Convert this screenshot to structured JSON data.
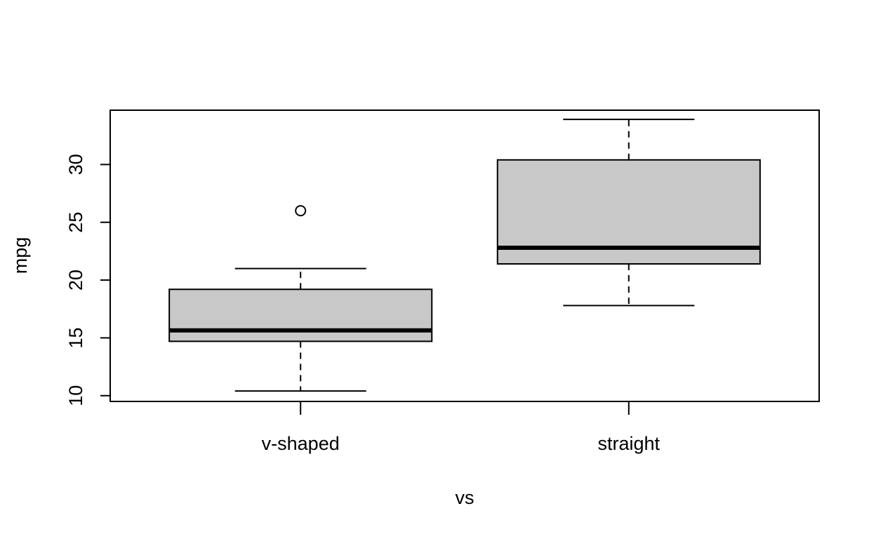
{
  "chart_data": {
    "type": "boxplot",
    "title": "",
    "xlabel": "vs",
    "ylabel": "mpg",
    "ylim": [
      9.5,
      34.7
    ],
    "yticks": [
      10,
      15,
      20,
      25,
      30
    ],
    "grid": false,
    "legend": "none",
    "box_fill": "#c8c8c8",
    "line_color": "#000000",
    "categories": [
      "v-shaped",
      "straight"
    ],
    "boxes": [
      {
        "category": "v-shaped",
        "whisker_low": 10.4,
        "q1": 14.7,
        "median": 15.65,
        "q3": 19.2,
        "whisker_high": 21.0,
        "outliers": [
          26.0
        ]
      },
      {
        "category": "straight",
        "whisker_low": 17.8,
        "q1": 21.4,
        "median": 22.8,
        "q3": 30.4,
        "whisker_high": 33.9,
        "outliers": []
      }
    ]
  }
}
